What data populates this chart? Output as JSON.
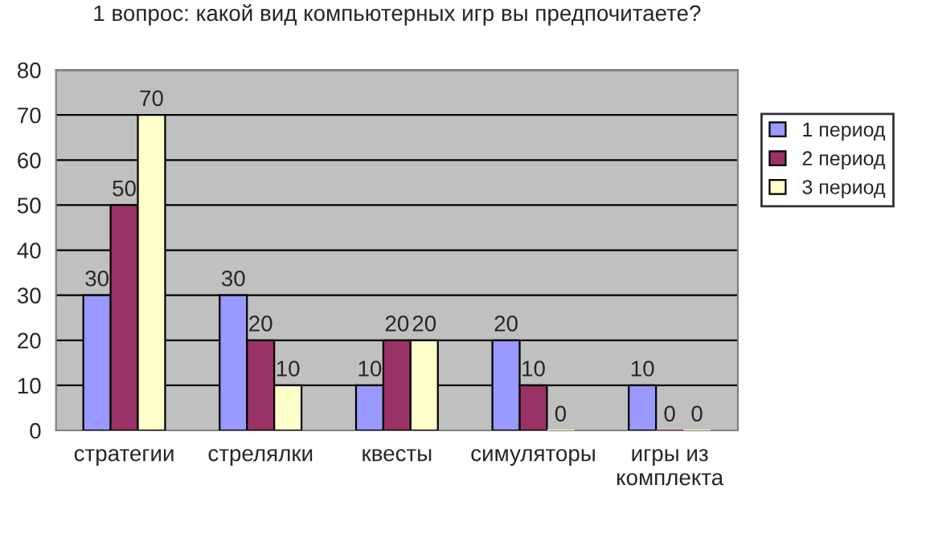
{
  "chart_data": {
    "type": "bar",
    "title": "1 вопрос: какой вид компьютерных игр вы предпочитаете?",
    "categories": [
      "стратегии",
      "стрелялки",
      "квесты",
      "симуляторы",
      "игры из\nкомплекта"
    ],
    "series": [
      {
        "name": "1 период",
        "color": "#9999ff",
        "values": [
          30,
          30,
          10,
          20,
          10
        ]
      },
      {
        "name": "2 период",
        "color": "#993366",
        "values": [
          50,
          20,
          20,
          10,
          0
        ]
      },
      {
        "name": "3 период",
        "color": "#ffffcc",
        "values": [
          70,
          10,
          20,
          0,
          0
        ]
      }
    ],
    "ylim": [
      0,
      80
    ],
    "yticks": [
      0,
      10,
      20,
      30,
      40,
      50,
      60,
      70,
      80
    ],
    "grid": "y",
    "legend": "right",
    "data_labels": true
  }
}
